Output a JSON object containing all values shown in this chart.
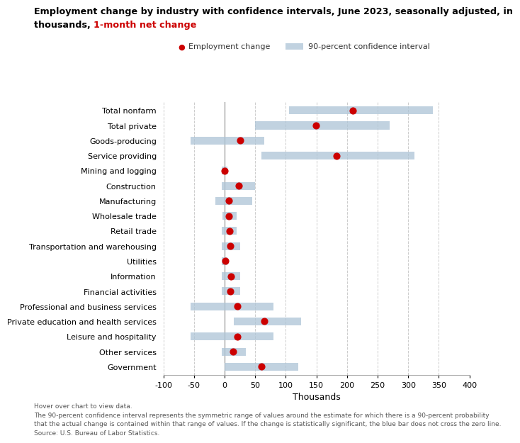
{
  "categories": [
    "Total nonfarm",
    "Total private",
    "Goods-producing",
    "Service providing",
    "Mining and logging",
    "Construction",
    "Manufacturing",
    "Wholesale trade",
    "Retail trade",
    "Transportation and warehousing",
    "Utilities",
    "Information",
    "Financial activities",
    "Professional and business services",
    "Private education and health services",
    "Leisure and hospitality",
    "Other services",
    "Government"
  ],
  "point_estimates": [
    209,
    149,
    26,
    183,
    0,
    23,
    7,
    7,
    8,
    9,
    1,
    10,
    9,
    21,
    65,
    21,
    14,
    60
  ],
  "ci_low": [
    105,
    50,
    -55,
    60,
    -5,
    -5,
    -15,
    -3,
    -5,
    -5,
    -5,
    -5,
    -5,
    -55,
    15,
    -55,
    -5,
    0
  ],
  "ci_high": [
    340,
    270,
    65,
    310,
    5,
    50,
    45,
    20,
    20,
    25,
    5,
    25,
    25,
    80,
    125,
    80,
    35,
    120
  ],
  "bar_color": "#adc4d6",
  "bar_alpha": 0.75,
  "point_color": "#cc0000",
  "point_size": 40,
  "xlim": [
    -100,
    400
  ],
  "xticks": [
    -100,
    -50,
    0,
    50,
    100,
    150,
    200,
    250,
    300,
    350,
    400
  ],
  "xlabel": "Thousands",
  "legend_label_point": "Employment change",
  "legend_label_ci": "90-percent confidence interval",
  "footnote1": "Hover over chart to view data.",
  "footnote2": "The 90-percent confidence interval represents the symmetric range of values around the estimate for which there is a 90-percent probability",
  "footnote3": "that the actual change is contained within that range of values. If the change is statistically significant, the blue bar does not cross the zero line.",
  "footnote4": "Source: U.S. Bureau of Labor Statistics.",
  "grid_color": "#cccccc",
  "bg_color": "#ffffff",
  "bar_height": 0.52,
  "title_line1": "Employment change by industry with confidence intervals, June 2023, seasonally adjusted, in",
  "title_line2_black": "thousands, ",
  "title_red": "1-month net change"
}
